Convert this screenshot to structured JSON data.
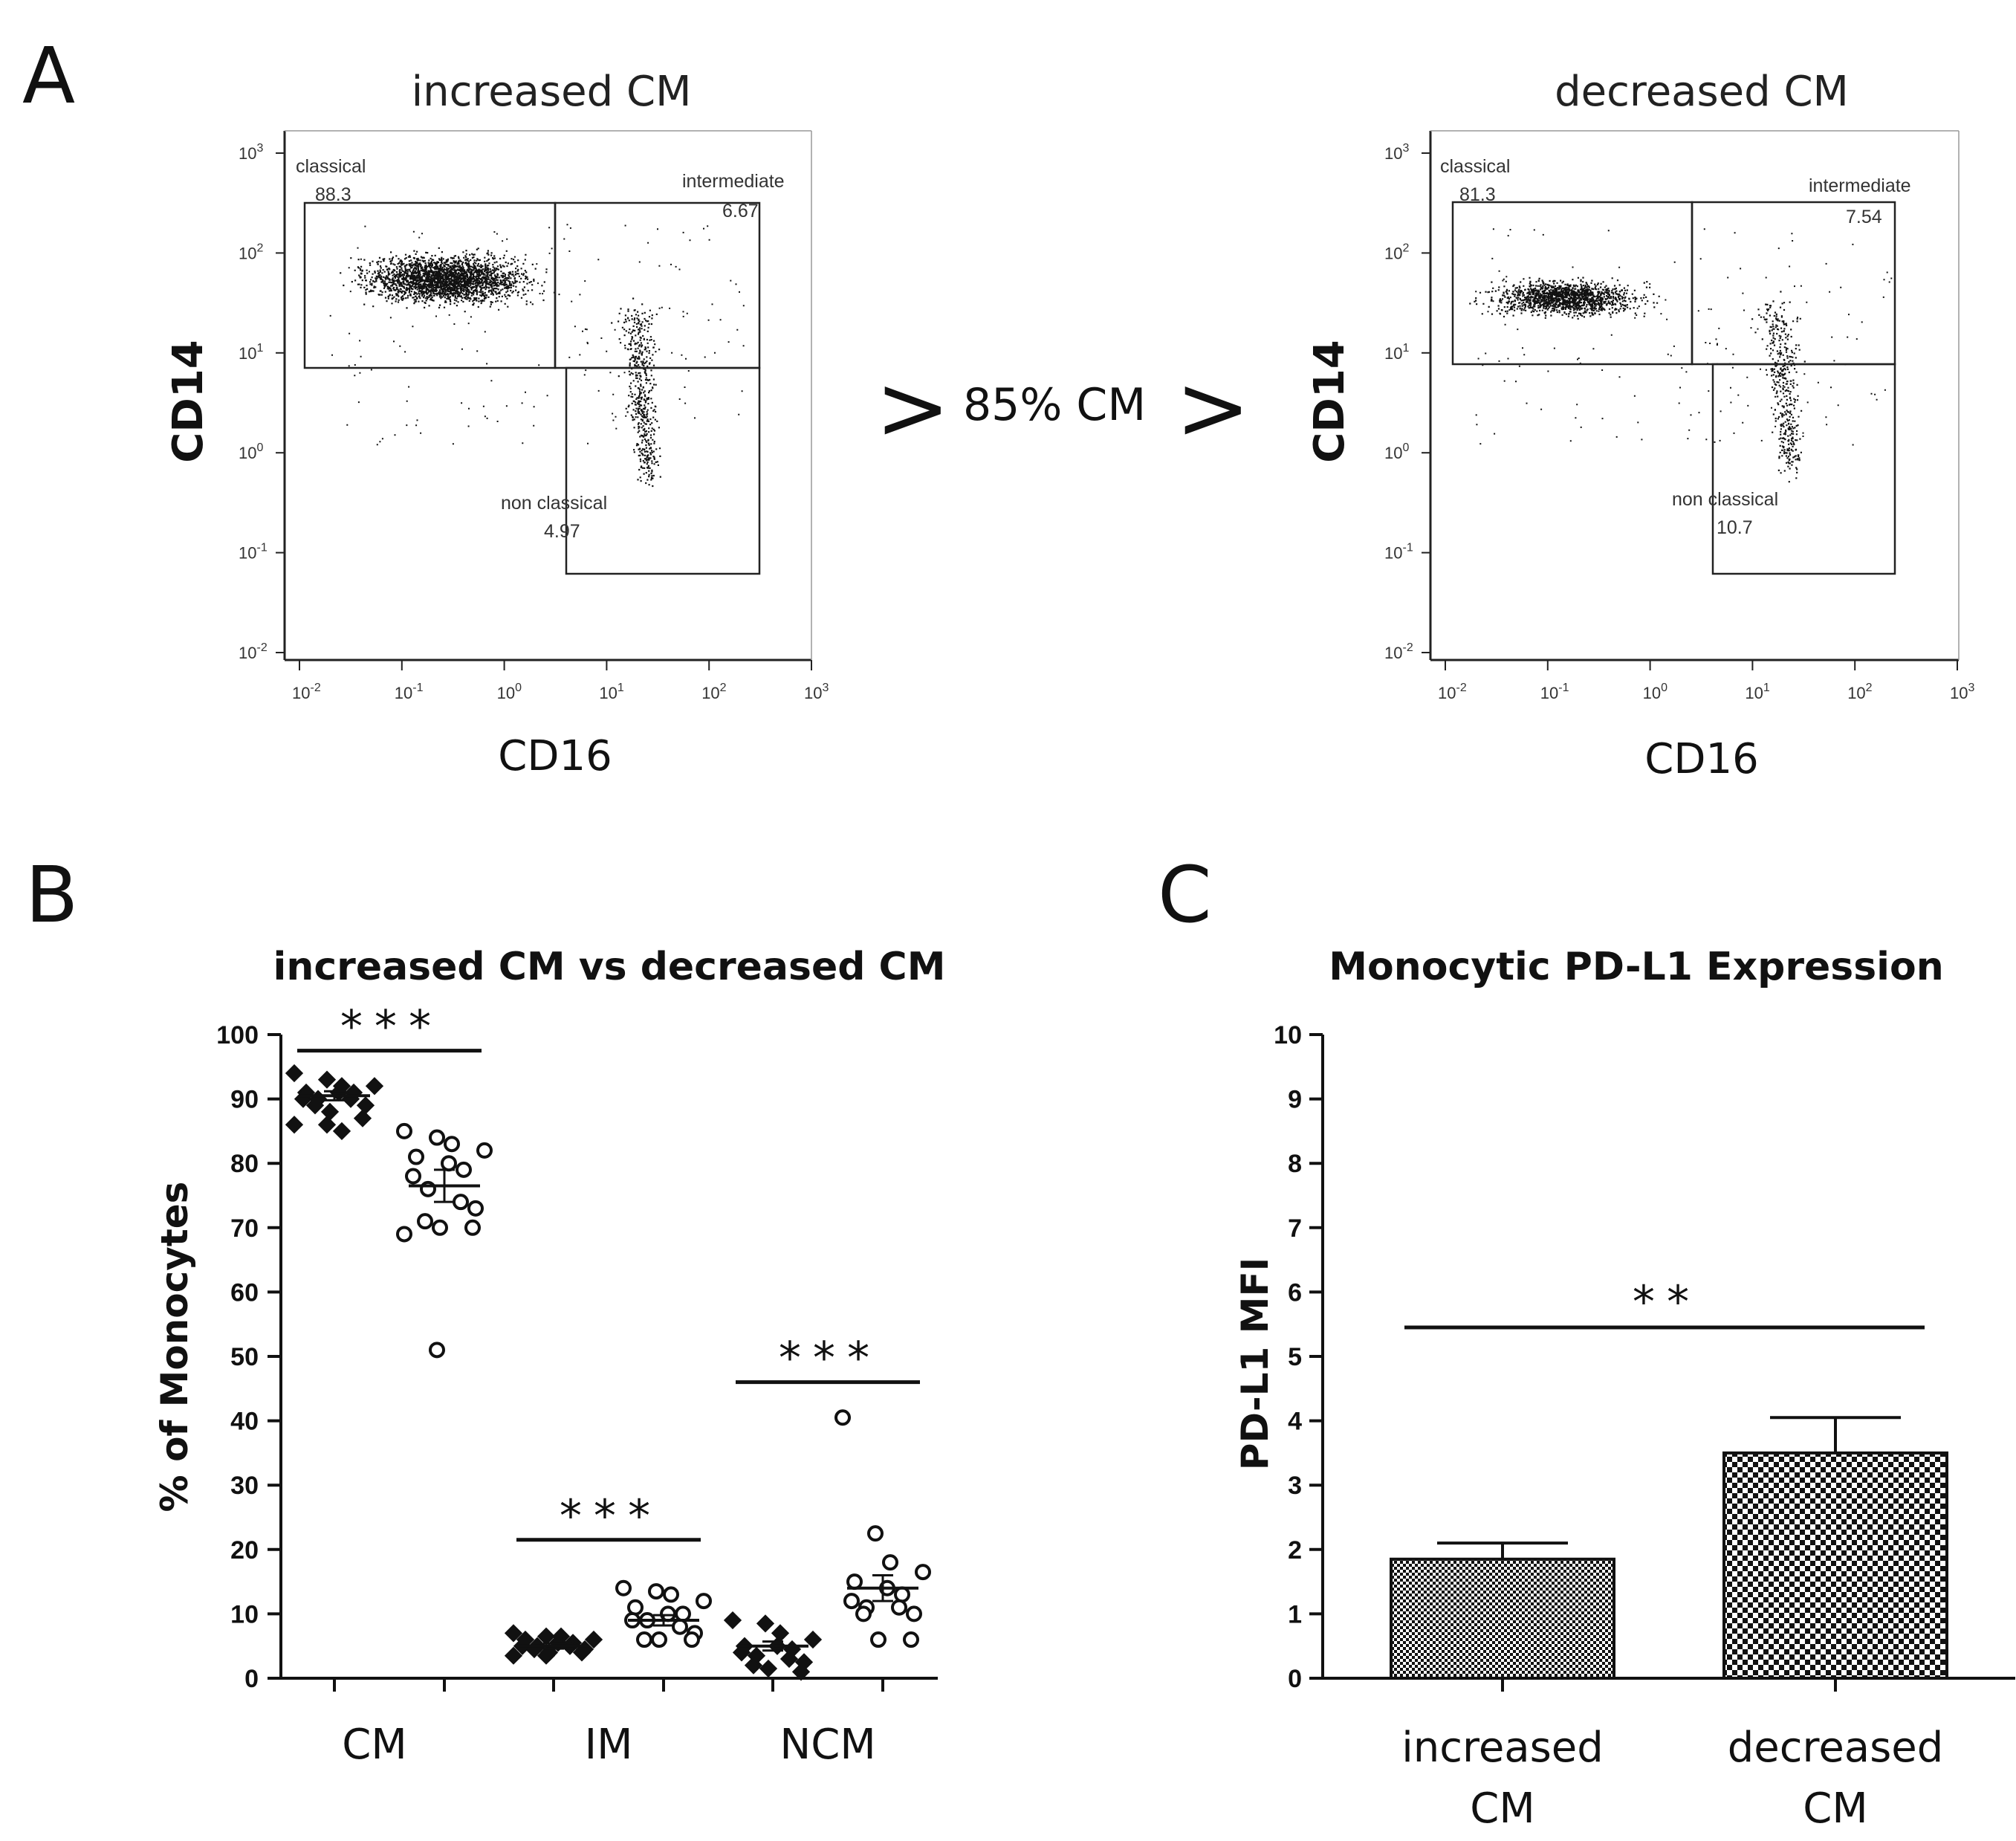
{
  "panels": {
    "a": {
      "letter": "A"
    },
    "b": {
      "letter": "B"
    },
    "c": {
      "letter": "C"
    }
  },
  "comparison": {
    "left_arrow": ">",
    "threshold": "85% CM",
    "right_arrow": ">"
  },
  "chart_data": [
    {
      "id": "flow-increased",
      "type": "scatter",
      "title": "increased CM",
      "xlabel": "CD16",
      "ylabel": "CD14",
      "x_ticks": [
        {
          "base": "10",
          "exp": "-2"
        },
        {
          "base": "10",
          "exp": "-1"
        },
        {
          "base": "10",
          "exp": "0"
        },
        {
          "base": "10",
          "exp": "1"
        },
        {
          "base": "10",
          "exp": "2"
        },
        {
          "base": "10",
          "exp": "3"
        }
      ],
      "y_ticks": [
        {
          "base": "10",
          "exp": "3"
        },
        {
          "base": "10",
          "exp": "2"
        },
        {
          "base": "10",
          "exp": "1"
        },
        {
          "base": "10",
          "exp": "0"
        },
        {
          "base": "10",
          "exp": "-1"
        },
        {
          "base": "10",
          "exp": "-2"
        }
      ],
      "gates": {
        "classical": {
          "label": "classical",
          "value": "88.3"
        },
        "intermediate": {
          "label": "intermediate",
          "value": "6.67"
        },
        "nonclassical": {
          "label": "non classical",
          "value": "4.97"
        }
      }
    },
    {
      "id": "flow-decreased",
      "type": "scatter",
      "title": "decreased CM",
      "xlabel": "CD16",
      "ylabel": "CD14",
      "x_ticks": [
        {
          "base": "10",
          "exp": "-2"
        },
        {
          "base": "10",
          "exp": "-1"
        },
        {
          "base": "10",
          "exp": "0"
        },
        {
          "base": "10",
          "exp": "1"
        },
        {
          "base": "10",
          "exp": "2"
        },
        {
          "base": "10",
          "exp": "3"
        }
      ],
      "y_ticks": [
        {
          "base": "10",
          "exp": "3"
        },
        {
          "base": "10",
          "exp": "2"
        },
        {
          "base": "10",
          "exp": "1"
        },
        {
          "base": "10",
          "exp": "0"
        },
        {
          "base": "10",
          "exp": "-1"
        },
        {
          "base": "10",
          "exp": "-2"
        }
      ],
      "gates": {
        "classical": {
          "label": "classical",
          "value": "81.3"
        },
        "intermediate": {
          "label": "intermediate",
          "value": "7.54"
        },
        "nonclassical": {
          "label": "non classical",
          "value": "10.7"
        }
      }
    },
    {
      "id": "monocyte-subsets",
      "type": "scatter",
      "title": "increased CM vs decreased CM",
      "ylabel": "% of Monocytes",
      "ylim": [
        0,
        100
      ],
      "y_ticks": [
        "0",
        "10",
        "20",
        "30",
        "40",
        "50",
        "60",
        "70",
        "80",
        "90",
        "100"
      ],
      "categories": [
        "CM",
        "IM",
        "NCM"
      ],
      "groups": [
        {
          "category": "CM",
          "series": "increased CM",
          "marker": "filled-diamond",
          "mean": 90.5,
          "sem": 0.7,
          "values": [
            94,
            93,
            92,
            92,
            91,
            91,
            91,
            90,
            90,
            90,
            89,
            89,
            88,
            87,
            86,
            86,
            85
          ]
        },
        {
          "category": "CM",
          "series": "decreased CM",
          "marker": "open-circle",
          "mean": 76.5,
          "sem": 2.5,
          "values": [
            85,
            84,
            83,
            82,
            81,
            80,
            79,
            78,
            76,
            74,
            73,
            71,
            70,
            70,
            69,
            51
          ]
        },
        {
          "category": "IM",
          "series": "increased CM",
          "marker": "filled-diamond",
          "mean": 5,
          "sem": 0.4,
          "values": [
            7,
            6.5,
            6.5,
            6,
            6,
            5.5,
            5.5,
            5,
            5,
            5,
            4.5,
            4.5,
            4,
            4,
            3.5,
            3.5
          ]
        },
        {
          "category": "IM",
          "series": "decreased CM",
          "marker": "open-circle",
          "mean": 9,
          "sem": 0.8,
          "values": [
            14,
            13.5,
            13,
            12,
            11,
            10,
            10,
            9,
            9,
            8,
            7,
            6,
            6,
            6
          ]
        },
        {
          "category": "NCM",
          "series": "increased CM",
          "marker": "filled-diamond",
          "mean": 5,
          "sem": 0.7,
          "values": [
            9,
            8.5,
            7,
            6,
            5,
            5,
            4.5,
            4,
            3.5,
            3,
            2.5,
            2,
            1.5,
            1
          ]
        },
        {
          "category": "NCM",
          "series": "decreased CM",
          "marker": "open-circle",
          "mean": 14,
          "sem": 2,
          "values": [
            40.5,
            22.5,
            18,
            16.5,
            15,
            14,
            13,
            12,
            11,
            11,
            10,
            10,
            6,
            6
          ]
        }
      ],
      "significance": [
        {
          "category": "CM",
          "label": "***",
          "y": 97.5
        },
        {
          "category": "IM",
          "label": "***",
          "y": 21.5
        },
        {
          "category": "NCM",
          "label": "***",
          "y": 46
        }
      ]
    },
    {
      "id": "pdl1-expression",
      "type": "bar",
      "title": "Monocytic PD-L1 Expression",
      "ylabel": "PD-L1 MFI",
      "ylim": [
        0,
        10
      ],
      "y_ticks": [
        "0",
        "1",
        "2",
        "3",
        "4",
        "5",
        "6",
        "7",
        "8",
        "9",
        "10"
      ],
      "categories": [
        {
          "line1": "increased",
          "line2": "CM"
        },
        {
          "line1": "decreased",
          "line2": "CM"
        }
      ],
      "values": [
        1.85,
        3.5
      ],
      "errors": [
        0.25,
        0.55
      ],
      "significance": {
        "label": "**",
        "y": 5.45
      }
    }
  ]
}
